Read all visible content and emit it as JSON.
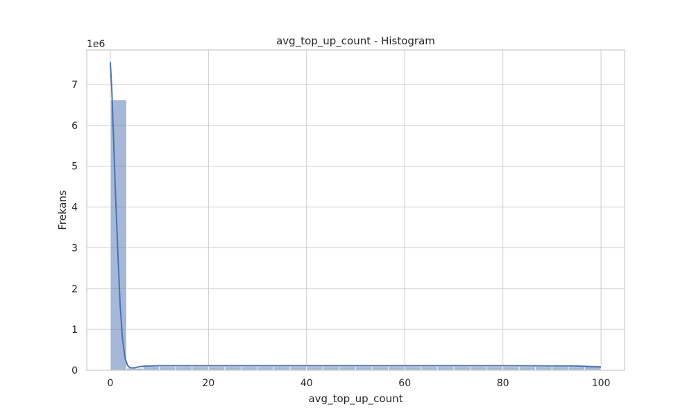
{
  "chart_data": {
    "type": "bar",
    "subtype": "histogram",
    "title": "avg_top_up_count - Histogram",
    "xlabel": "avg_top_up_count",
    "ylabel": "Frekans",
    "y_scale_label": "1e6",
    "xlim": [
      -4.8,
      104.8
    ],
    "ylim": [
      0,
      7.85
    ],
    "y_multiplier": 1000000,
    "xticks": [
      0,
      20,
      40,
      60,
      80,
      100
    ],
    "yticks": [
      0,
      1,
      2,
      3,
      4,
      5,
      6,
      7
    ],
    "grid": true,
    "bins": {
      "start": 0,
      "width": 3.333,
      "values": [
        6.63,
        0.05,
        0.09,
        0.09,
        0.09,
        0.09,
        0.09,
        0.09,
        0.09,
        0.09,
        0.09,
        0.09,
        0.09,
        0.09,
        0.09,
        0.09,
        0.09,
        0.09,
        0.09,
        0.09,
        0.09,
        0.09,
        0.09,
        0.09,
        0.09,
        0.09,
        0.09,
        0.09,
        0.09,
        0.09
      ]
    },
    "kde": {
      "x": [
        0,
        0.3,
        0.6,
        1.0,
        1.5,
        2.0,
        2.5,
        3.0,
        3.5,
        4.0,
        5.0,
        6.0,
        7.0,
        10,
        20,
        40,
        60,
        80,
        95,
        100
      ],
      "y": [
        7.55,
        6.9,
        5.9,
        4.5,
        3.0,
        1.6,
        0.75,
        0.3,
        0.12,
        0.06,
        0.06,
        0.09,
        0.1,
        0.11,
        0.11,
        0.11,
        0.11,
        0.11,
        0.105,
        0.08
      ]
    },
    "colors": {
      "bar": "#4c72b0",
      "line": "#4c72b0",
      "grid": "#cccccc"
    }
  }
}
